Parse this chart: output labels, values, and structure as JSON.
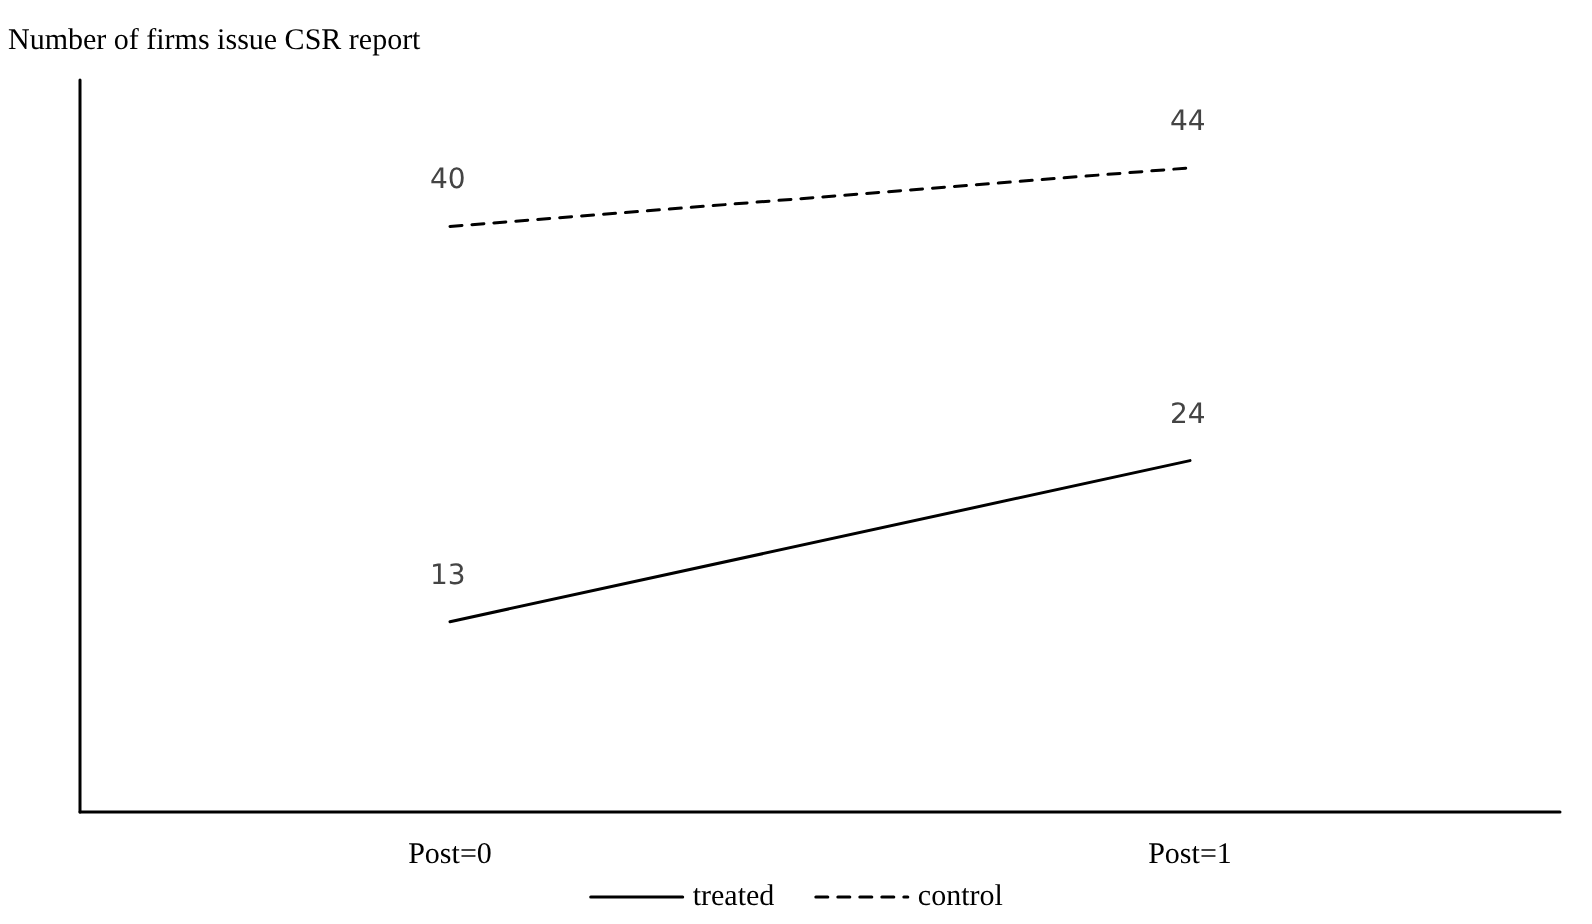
{
  "chart_data": {
    "type": "line",
    "ylabel": "Number of firms issue CSR report",
    "categories": [
      "Post=0",
      "Post=1"
    ],
    "series": [
      {
        "name": "treated",
        "color": "#000000",
        "values": [
          13,
          24
        ],
        "line_style": "solid"
      },
      {
        "name": "control",
        "color": "#000000",
        "values": [
          40,
          44
        ],
        "line_style": "dashed"
      }
    ],
    "ylim": [
      0,
      50
    ],
    "tick_labels": "x",
    "data_labels": true,
    "legend": "bottom",
    "grid": false,
    "marker": "none"
  }
}
